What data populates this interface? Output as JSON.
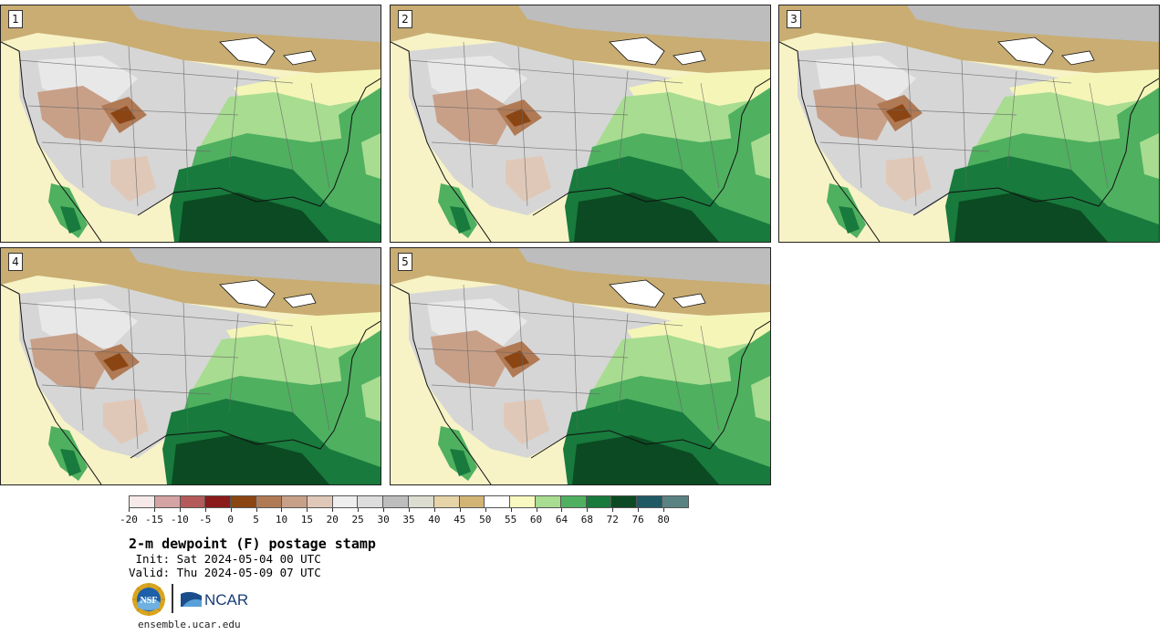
{
  "panels": [
    {
      "label": "1"
    },
    {
      "label": "2"
    },
    {
      "label": "3"
    },
    {
      "label": "4"
    },
    {
      "label": "5"
    }
  ],
  "legend": {
    "colors": [
      "#f6e9e9",
      "#d4a3a3",
      "#b45a5a",
      "#8b1a1a",
      "#8b4513",
      "#b07a55",
      "#c8a088",
      "#e0c8b8",
      "#eeeeee",
      "#dddddd",
      "#bdbdbd",
      "#dcdcd0",
      "#e6d3a8",
      "#d2b475",
      "#ffffff",
      "#f8f8c0",
      "#a8dc90",
      "#4fb060",
      "#187a3c",
      "#0b4a22",
      "#1f5a64",
      "#5a8282"
    ],
    "ticks": [
      "-20",
      "-15",
      "-10",
      "-5",
      "0",
      "5",
      "10",
      "15",
      "20",
      "25",
      "30",
      "35",
      "40",
      "45",
      "50",
      "55",
      "60",
      "64",
      "68",
      "72",
      "76",
      "80"
    ]
  },
  "title": "2-m dewpoint (F) postage stamp",
  "init": " Init: Sat 2024-05-04 00 UTC",
  "valid": "Valid: Thu 2024-05-09 07 UTC",
  "logos": {
    "nsf_text": "NSF",
    "ncar_text": "NCAR"
  },
  "url": "ensemble.ucar.edu"
}
